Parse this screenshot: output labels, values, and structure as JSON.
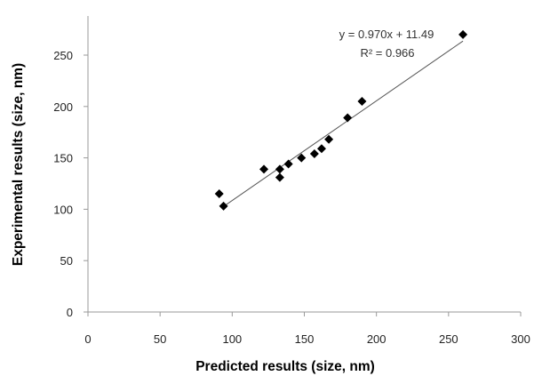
{
  "chart_data": {
    "type": "scatter",
    "xlabel": "Predicted results (size, nm)",
    "ylabel": "Experimental results (size, nm)",
    "xlim": [
      0,
      300
    ],
    "ylim": [
      0,
      300
    ],
    "x_ticks": [
      "0",
      "50",
      "100",
      "150",
      "200",
      "250",
      "300"
    ],
    "y_ticks": [
      "0",
      "50",
      "100",
      "150",
      "200",
      "250"
    ],
    "grid": false,
    "legend": false,
    "marker": "diamond",
    "marker_color": "#000000",
    "points": [
      {
        "x": 91,
        "y": 115
      },
      {
        "x": 94,
        "y": 103
      },
      {
        "x": 122,
        "y": 139
      },
      {
        "x": 133,
        "y": 139
      },
      {
        "x": 133,
        "y": 131
      },
      {
        "x": 139,
        "y": 144
      },
      {
        "x": 148,
        "y": 150
      },
      {
        "x": 157,
        "y": 154
      },
      {
        "x": 162,
        "y": 159
      },
      {
        "x": 167,
        "y": 168
      },
      {
        "x": 180,
        "y": 189
      },
      {
        "x": 190,
        "y": 205
      },
      {
        "x": 260,
        "y": 270
      }
    ],
    "trendline": {
      "x_start": 95,
      "x_end": 260,
      "slope": 0.97,
      "intercept": 11.49,
      "equation": "y = 0.970x + 11.49",
      "r_squared": "R² = 0.966"
    }
  }
}
